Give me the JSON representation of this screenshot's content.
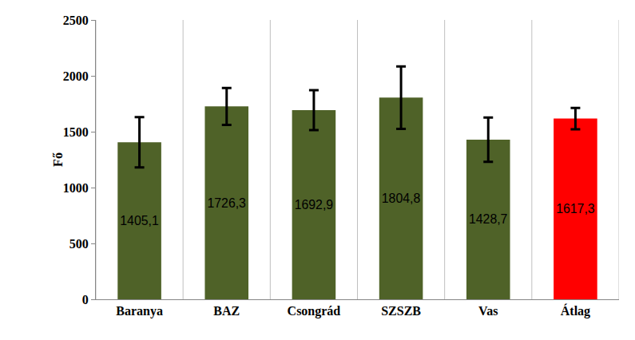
{
  "chart_data": {
    "type": "bar",
    "y_label": "Fő",
    "categories": [
      "Baranya",
      "BAZ",
      "Csongrád",
      "SZSZB",
      "Vas",
      "Átlag"
    ],
    "values": [
      1405.1,
      1726.3,
      1692.9,
      1804.8,
      1428.7,
      1617.3
    ],
    "value_labels": [
      "1405,1",
      "1726,3",
      "1692,9",
      "1804,8",
      "1428,7",
      "1617,3"
    ],
    "errors": [
      225,
      165,
      178,
      280,
      198,
      95
    ],
    "colors": [
      "#4f6228",
      "#4f6228",
      "#4f6228",
      "#4f6228",
      "#4f6228",
      "#ff0000"
    ],
    "data_labels": true,
    "ylim": [
      0,
      2500
    ],
    "yticks": [
      0,
      500,
      1000,
      1500,
      2000,
      2500
    ]
  }
}
